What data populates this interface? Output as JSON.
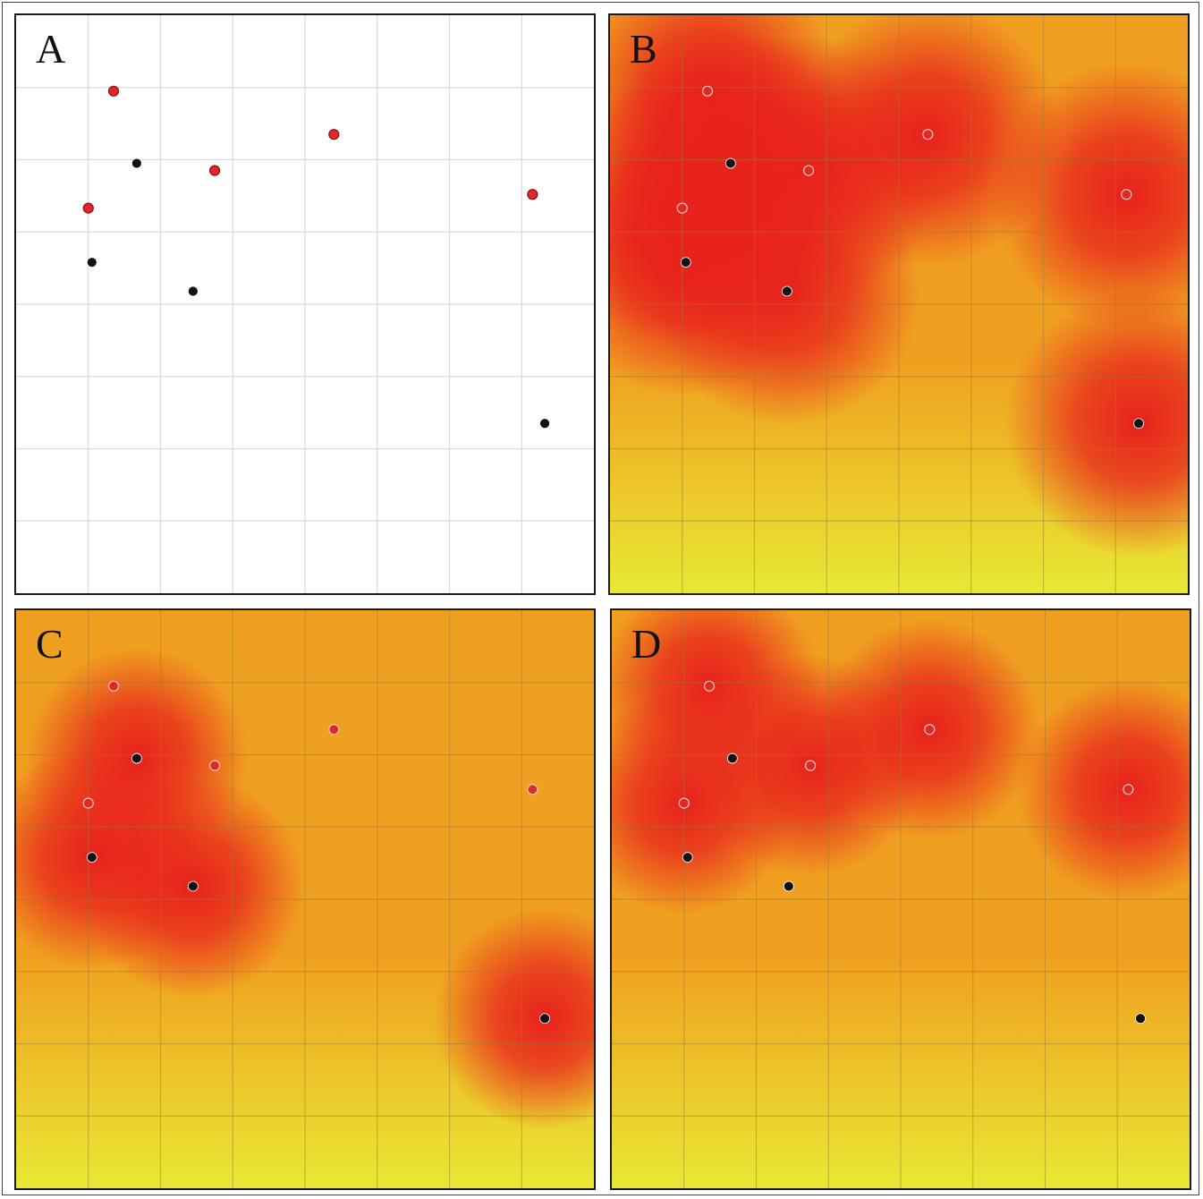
{
  "grid": {
    "cols": 8,
    "rows": 8
  },
  "colors": {
    "red_point": "#e02828",
    "black_point": "#111111",
    "heat_low": "#e8e834",
    "heat_mid": "#f0a020",
    "heat_high": "#e8221c",
    "gridline_plain": "#d9d9d9",
    "gridline_heat": "#9a7a3a"
  },
  "points": {
    "red": [
      {
        "x": 1.35,
        "y": 1.05
      },
      {
        "x": 4.4,
        "y": 1.65
      },
      {
        "x": 2.75,
        "y": 2.15
      },
      {
        "x": 7.15,
        "y": 2.48
      },
      {
        "x": 1.0,
        "y": 2.67
      }
    ],
    "black": [
      {
        "x": 1.67,
        "y": 2.05
      },
      {
        "x": 1.05,
        "y": 3.42
      },
      {
        "x": 2.45,
        "y": 3.82
      },
      {
        "x": 7.32,
        "y": 5.65
      }
    ]
  },
  "panels": [
    {
      "id": "a",
      "label": "A",
      "heat": "none"
    },
    {
      "id": "b",
      "label": "B",
      "heat": "all"
    },
    {
      "id": "c",
      "label": "C",
      "heat": "black"
    },
    {
      "id": "d",
      "label": "D",
      "heat": "red"
    }
  ]
}
